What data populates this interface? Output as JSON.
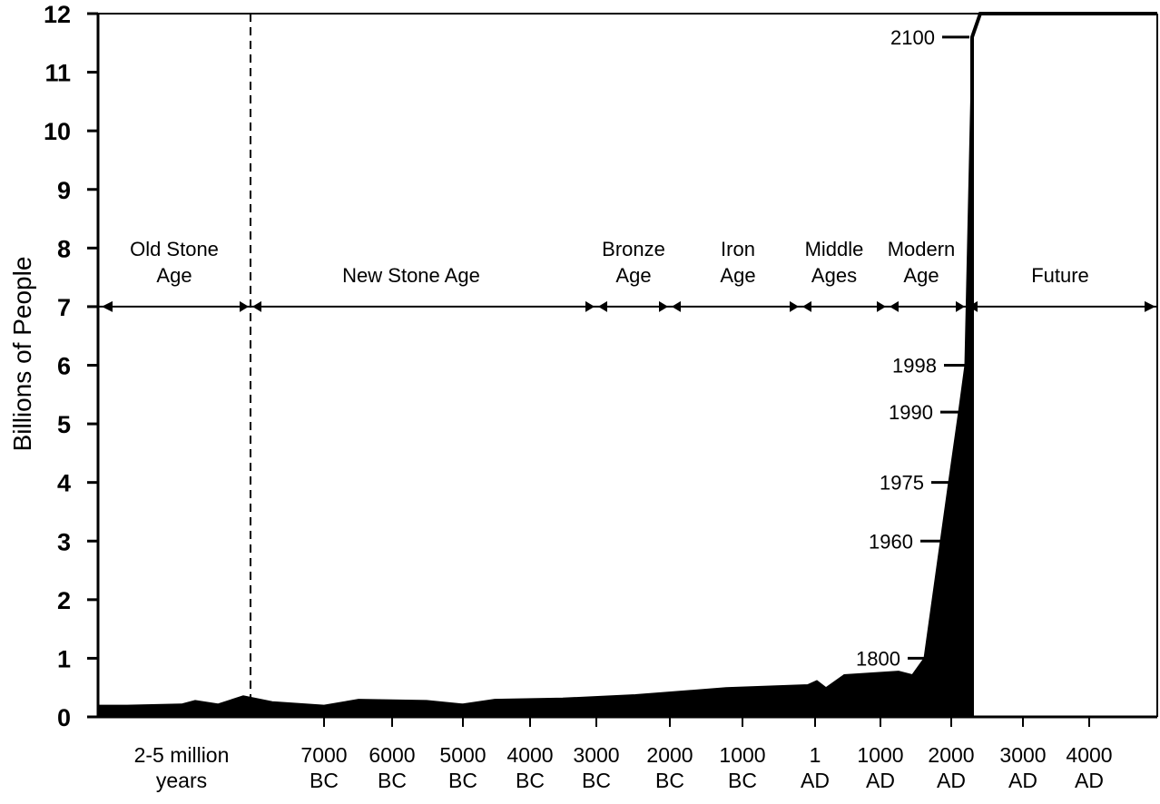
{
  "chart_data": {
    "type": "area",
    "ylabel": "Billions of People",
    "ylim": [
      0,
      12
    ],
    "y_ticks": [
      "0",
      "1",
      "2",
      "3",
      "4",
      "5",
      "6",
      "7",
      "8",
      "9",
      "10",
      "11",
      "12"
    ],
    "x_ticks": [
      {
        "line1": "2-5 million",
        "line2": "years"
      },
      {
        "line1": "7000",
        "line2": "BC"
      },
      {
        "line1": "6000",
        "line2": "BC"
      },
      {
        "line1": "5000",
        "line2": "BC"
      },
      {
        "line1": "4000",
        "line2": "BC"
      },
      {
        "line1": "3000",
        "line2": "BC"
      },
      {
        "line1": "2000",
        "line2": "BC"
      },
      {
        "line1": "1000",
        "line2": "BC"
      },
      {
        "line1": "1",
        "line2": "AD"
      },
      {
        "line1": "1000",
        "line2": "AD"
      },
      {
        "line1": "2000",
        "line2": "AD"
      },
      {
        "line1": "3000",
        "line2": "AD"
      },
      {
        "line1": "4000",
        "line2": "AD"
      }
    ],
    "eras": [
      {
        "line1": "Old Stone",
        "line2": "Age"
      },
      {
        "line1": "New Stone Age",
        "line2": ""
      },
      {
        "line1": "Bronze",
        "line2": "Age"
      },
      {
        "line1": "Iron",
        "line2": "Age"
      },
      {
        "line1": "Middle",
        "line2": "Ages"
      },
      {
        "line1": "Modern",
        "line2": "Age"
      },
      {
        "line1": "Future",
        "line2": ""
      }
    ],
    "annotations": [
      {
        "label": "2100",
        "value": 11.6
      },
      {
        "label": "1998",
        "value": 6.0
      },
      {
        "label": "1990",
        "value": 5.2
      },
      {
        "label": "1975",
        "value": 4.0
      },
      {
        "label": "1960",
        "value": 3.0
      },
      {
        "label": "1800",
        "value": 1.0
      }
    ],
    "series": [
      {
        "x": [
          "2-5 million years",
          "7000 BC",
          "6000 BC",
          "5000 BC",
          "4000 BC",
          "3000 BC",
          "2000 BC",
          "1000 BC",
          "1 AD",
          "1000 AD",
          "1800 AD",
          "1960 AD",
          "1975 AD",
          "1990 AD",
          "1998 AD",
          "2100 AD"
        ],
        "values": [
          0.2,
          0.22,
          0.28,
          0.25,
          0.28,
          0.32,
          0.38,
          0.5,
          0.55,
          0.75,
          1.0,
          3.0,
          4.0,
          5.2,
          6.0,
          11.6
        ]
      }
    ]
  }
}
